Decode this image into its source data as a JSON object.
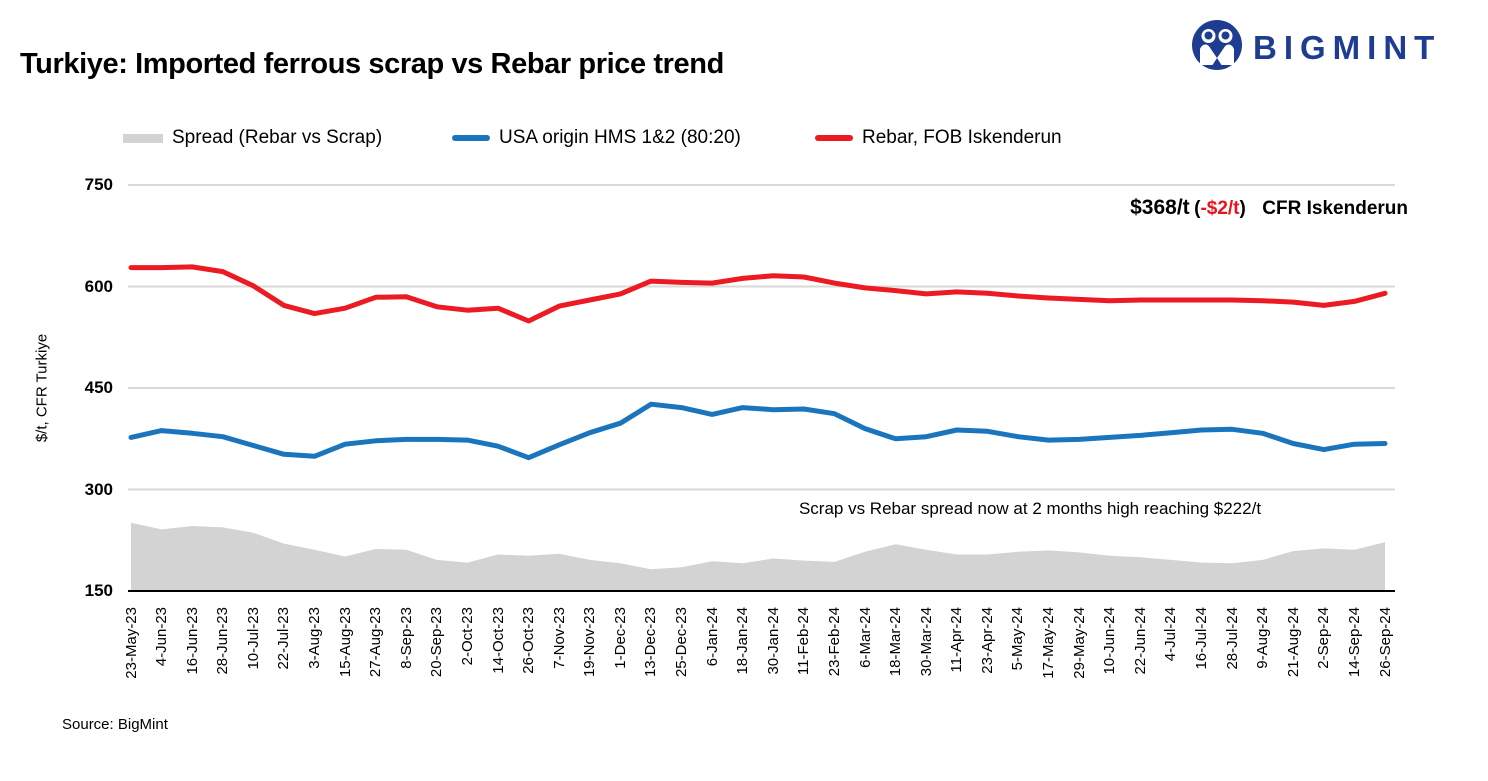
{
  "header": {
    "title": "Turkiye: Imported ferrous scrap vs Rebar price trend",
    "logo_text": "BIGMINT"
  },
  "colors": {
    "rebar_red": "#ec1a23",
    "scrap_blue": "#1b75bc",
    "spread_gray": "#d3d3d3",
    "gridline": "#d9d9d9",
    "axis_line": "#000000",
    "logo_navy": "#1e3c90",
    "annotation_red": "#e8131d"
  },
  "axis": {
    "y_title": "$/t, CFR Turkiye",
    "y_ticks": [
      750,
      600,
      450,
      300,
      150
    ]
  },
  "annotations": {
    "price_value": "$368/t",
    "paren_open": "(",
    "price_change": "-$2/t",
    "paren_close": ")",
    "price_location": "CFR Iskenderun",
    "spread_note": "Scrap vs Rebar spread now at 2 months high reaching $222/t"
  },
  "source": "Source: BigMint",
  "chart_data": {
    "type": "combo",
    "title": "Turkiye: Imported ferrous scrap vs Rebar price trend",
    "ylabel": "$/t, CFR Turkiye",
    "ylim": [
      150,
      750
    ],
    "grid": true,
    "legend_position": "top",
    "categories": [
      "23-May-23",
      "4-Jun-23",
      "16-Jun-23",
      "28-Jun-23",
      "10-Jul-23",
      "22-Jul-23",
      "3-Aug-23",
      "15-Aug-23",
      "27-Aug-23",
      "8-Sep-23",
      "20-Sep-23",
      "2-Oct-23",
      "14-Oct-23",
      "26-Oct-23",
      "7-Nov-23",
      "19-Nov-23",
      "1-Dec-23",
      "13-Dec-23",
      "25-Dec-23",
      "6-Jan-24",
      "18-Jan-24",
      "30-Jan-24",
      "11-Feb-24",
      "23-Feb-24",
      "6-Mar-24",
      "18-Mar-24",
      "30-Mar-24",
      "11-Apr-24",
      "23-Apr-24",
      "5-May-24",
      "17-May-24",
      "29-May-24",
      "10-Jun-24",
      "22-Jun-24",
      "4-Jul-24",
      "16-Jul-24",
      "28-Jul-24",
      "9-Aug-24",
      "21-Aug-24",
      "2-Sep-24",
      "14-Sep-24",
      "26-Sep-24"
    ],
    "series": [
      {
        "name": "Spread (Rebar vs Scrap)",
        "type": "area",
        "color": "#d3d3d3",
        "values": [
          251,
          241,
          246,
          244,
          236,
          220,
          211,
          201,
          212,
          211,
          196,
          192,
          204,
          202,
          205,
          196,
          191,
          182,
          185,
          194,
          191,
          198,
          195,
          193,
          208,
          219,
          211,
          204,
          204,
          208,
          210,
          207,
          202,
          200,
          196,
          192,
          191,
          196,
          209,
          213,
          211,
          222
        ]
      },
      {
        "name": "USA origin HMS 1&2 (80:20)",
        "type": "line",
        "color": "#1b75bc",
        "values": [
          377,
          387,
          383,
          378,
          365,
          352,
          349,
          367,
          372,
          374,
          374,
          373,
          364,
          347,
          366,
          384,
          398,
          426,
          421,
          411,
          421,
          418,
          419,
          412,
          390,
          375,
          378,
          388,
          386,
          378,
          373,
          374,
          377,
          380,
          384,
          388,
          389,
          383,
          368,
          359,
          367,
          368
        ]
      },
      {
        "name": "Rebar, FOB Iskenderun",
        "type": "line",
        "color": "#ec1a23",
        "values": [
          628,
          628,
          629,
          622,
          601,
          572,
          560,
          568,
          584,
          585,
          570,
          565,
          568,
          549,
          571,
          580,
          589,
          608,
          606,
          605,
          612,
          616,
          614,
          605,
          598,
          594,
          589,
          592,
          590,
          586,
          583,
          581,
          579,
          580,
          580,
          580,
          580,
          579,
          577,
          572,
          578,
          590
        ]
      }
    ]
  }
}
